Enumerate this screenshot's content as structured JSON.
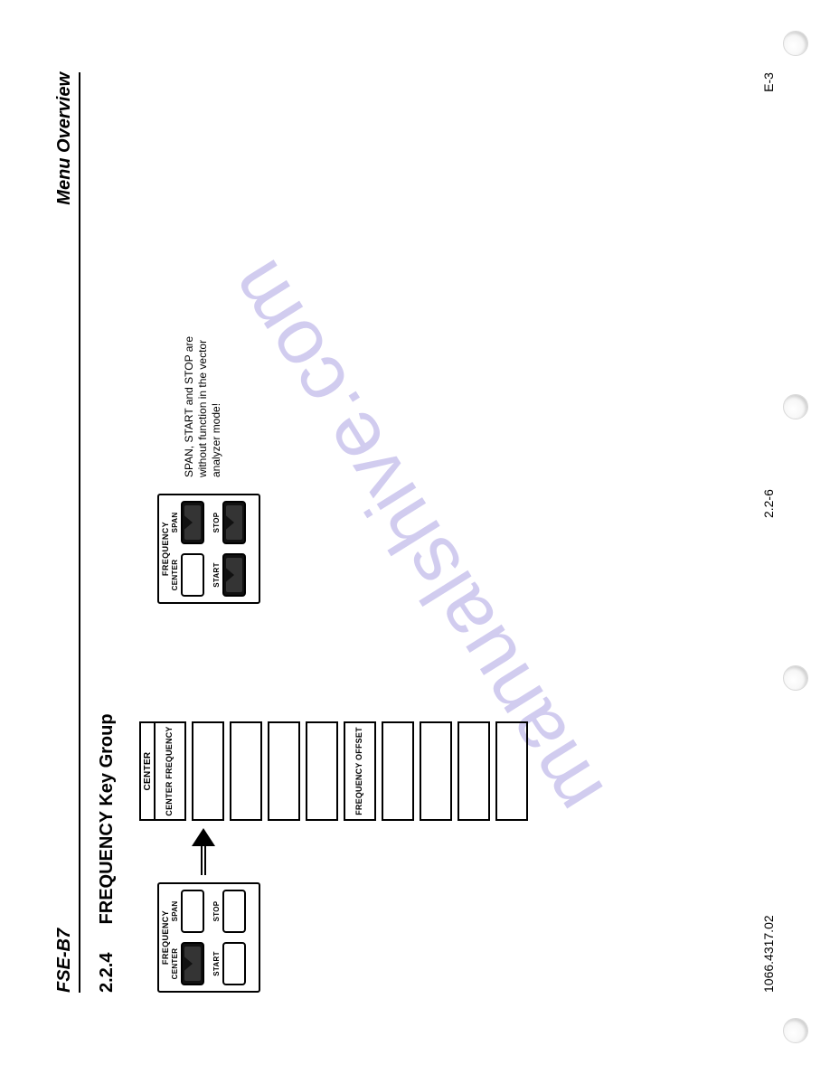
{
  "header": {
    "model": "FSE-B7",
    "chapter": "Menu Overview"
  },
  "section": {
    "number": "2.2.4",
    "title": "FREQUENCY Key Group"
  },
  "keygroup1": {
    "title": "FREQUENCY",
    "keys": {
      "tl_label": "CENTER",
      "tr_label": "SPAN",
      "bl_label": "START",
      "br_label": "STOP"
    },
    "pressed": "tl"
  },
  "menu": {
    "header": "CENTER",
    "items": [
      "CENTER FREQUENCY",
      "",
      "",
      "",
      "",
      "FREQUENCY OFFSET",
      "",
      "",
      "",
      ""
    ]
  },
  "keygroup2": {
    "title": "FREQUENCY",
    "keys": {
      "tl_label": "CENTER",
      "tr_label": "SPAN",
      "bl_label": "START",
      "br_label": "STOP"
    },
    "pressed_set": [
      "tr",
      "bl",
      "br"
    ]
  },
  "note": "SPAN, START and STOP are without function in the vector analyzer mode!",
  "footer": {
    "left": "1066.4317.02",
    "center": "2.2-6",
    "right": "E-3"
  },
  "watermark": "manualshive.com",
  "colors": {
    "text": "#000000",
    "background": "#ffffff",
    "watermark": "#b9b1e8"
  },
  "typography": {
    "header_fontsize_pt": 15,
    "section_fontsize_pt": 15,
    "body_fontsize_pt": 9,
    "footer_fontsize_pt": 11,
    "watermark_fontsize_pt": 66
  }
}
